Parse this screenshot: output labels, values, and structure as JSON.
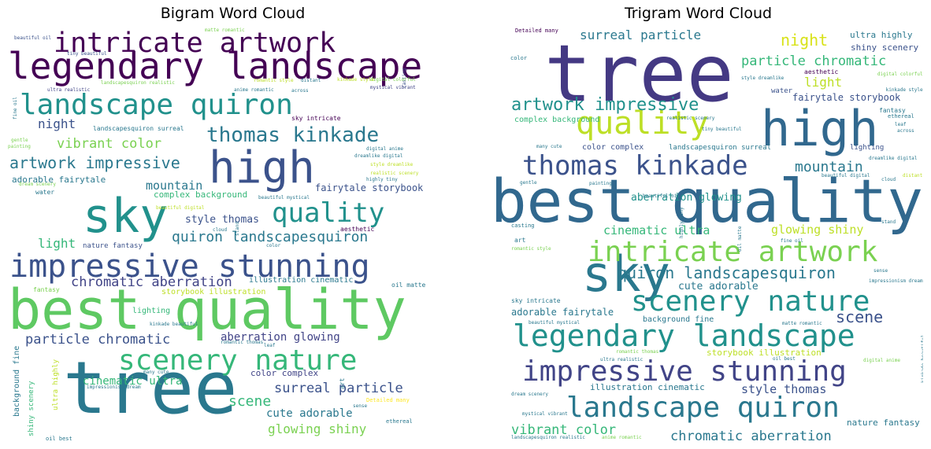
{
  "chart_data": [
    {
      "type": "wordcloud",
      "title": "Bigram Word Cloud",
      "words": [
        {
          "text": "tree",
          "size": 92,
          "color": "#2a788e"
        },
        {
          "text": "best quality",
          "size": 70,
          "color": "#5ec962"
        },
        {
          "text": "legendary landscape",
          "size": 46,
          "color": "#440154"
        },
        {
          "text": "sky",
          "size": 60,
          "color": "#21918c"
        },
        {
          "text": "high",
          "size": 56,
          "color": "#3b528b"
        },
        {
          "text": "impressive stunning",
          "size": 40,
          "color": "#3b528b"
        },
        {
          "text": "landscape quiron",
          "size": 36,
          "color": "#21918c"
        },
        {
          "text": "intricate artwork",
          "size": 35,
          "color": "#440154"
        },
        {
          "text": "scenery nature",
          "size": 36,
          "color": "#35b779"
        },
        {
          "text": "quality",
          "size": 34,
          "color": "#21918c"
        },
        {
          "text": "thomas kinkade",
          "size": 26,
          "color": "#2a788e"
        },
        {
          "text": "artwork impressive",
          "size": 20,
          "color": "#2a788e"
        },
        {
          "text": "quiron landscapesquiron",
          "size": 18,
          "color": "#2a788e"
        },
        {
          "text": "chromatic aberration",
          "size": 17,
          "color": "#414487"
        },
        {
          "text": "particle chromatic",
          "size": 17,
          "color": "#3b528b"
        },
        {
          "text": "vibrant color",
          "size": 17,
          "color": "#7ad151"
        },
        {
          "text": "surreal particle",
          "size": 17,
          "color": "#3b528b"
        },
        {
          "text": "night",
          "size": 16,
          "color": "#3b528b"
        },
        {
          "text": "mountain",
          "size": 15,
          "color": "#2a788e"
        },
        {
          "text": "light",
          "size": 16,
          "color": "#35b779"
        },
        {
          "text": "scene",
          "size": 18,
          "color": "#35b779"
        },
        {
          "text": "glowing shiny",
          "size": 16,
          "color": "#7ad151"
        },
        {
          "text": "cute adorable",
          "size": 14,
          "color": "#2a788e"
        },
        {
          "text": "aberration glowing",
          "size": 14,
          "color": "#414487"
        },
        {
          "text": "cinematic ultra",
          "size": 14,
          "color": "#35b779"
        },
        {
          "text": "style thomas",
          "size": 13,
          "color": "#3b528b"
        },
        {
          "text": "fairytale storybook",
          "size": 12,
          "color": "#3b528b"
        },
        {
          "text": "complex background",
          "size": 11,
          "color": "#35b779"
        },
        {
          "text": "adorable fairytale",
          "size": 11,
          "color": "#2a788e"
        },
        {
          "text": "color complex",
          "size": 11,
          "color": "#414487"
        },
        {
          "text": "illustration cinematic",
          "size": 10,
          "color": "#2a788e"
        },
        {
          "text": "storybook illustration",
          "size": 10,
          "color": "#bddf26"
        },
        {
          "text": "lighting",
          "size": 10,
          "color": "#35b779"
        },
        {
          "text": "background fine",
          "size": 10,
          "color": "#2a788e"
        },
        {
          "text": "nature fantasy",
          "size": 9,
          "color": "#3b528b"
        },
        {
          "text": "ultra highly",
          "size": 9,
          "color": "#bddf26"
        },
        {
          "text": "shiny scenery",
          "size": 9,
          "color": "#35b779"
        },
        {
          "text": "landscapesquiron surreal",
          "size": 8,
          "color": "#2a788e"
        },
        {
          "text": "sky intricate",
          "size": 8,
          "color": "#440154"
        },
        {
          "text": "water",
          "size": 8,
          "color": "#2a788e"
        },
        {
          "text": "fantasy",
          "size": 8,
          "color": "#7ad151"
        },
        {
          "text": "aesthetic",
          "size": 8,
          "color": "#440154"
        },
        {
          "text": "oil matte",
          "size": 8,
          "color": "#2a788e"
        },
        {
          "text": "art",
          "size": 8,
          "color": "#2a788e"
        },
        {
          "text": "Detailed many",
          "size": 7,
          "color": "#fde725"
        },
        {
          "text": "ethereal",
          "size": 7,
          "color": "#2a788e"
        },
        {
          "text": "oil best",
          "size": 7,
          "color": "#2a788e"
        },
        {
          "text": "mystical vibrant",
          "size": 6,
          "color": "#414487"
        },
        {
          "text": "casting",
          "size": 6,
          "color": "#3b528b"
        },
        {
          "text": "digital colorful",
          "size": 6,
          "color": "#7ad151"
        },
        {
          "text": "kinkade style",
          "size": 6,
          "color": "#bddf26"
        },
        {
          "text": "romantic style",
          "size": 6,
          "color": "#bddf26"
        },
        {
          "text": "distant",
          "size": 6,
          "color": "#2a788e"
        },
        {
          "text": "anime romantic",
          "size": 6,
          "color": "#2a788e"
        },
        {
          "text": "across",
          "size": 6,
          "color": "#2a788e"
        },
        {
          "text": "ultra realistic",
          "size": 6,
          "color": "#414487"
        },
        {
          "text": "landscapesquiron realistic",
          "size": 6,
          "color": "#7ad151"
        },
        {
          "text": "fine oil",
          "size": 6,
          "color": "#2a788e"
        },
        {
          "text": "gentle",
          "size": 6,
          "color": "#7ad151"
        },
        {
          "text": "painting",
          "size": 6,
          "color": "#7ad151"
        },
        {
          "text": "digital anime",
          "size": 6,
          "color": "#2a788e"
        },
        {
          "text": "style dreamlike",
          "size": 6,
          "color": "#bddf26"
        },
        {
          "text": "dreamlike digital",
          "size": 6,
          "color": "#2a788e"
        },
        {
          "text": "realistic scenery",
          "size": 6,
          "color": "#bddf26"
        },
        {
          "text": "highly tiny",
          "size": 6,
          "color": "#2a788e"
        },
        {
          "text": "dream scenery",
          "size": 6,
          "color": "#7ad151"
        },
        {
          "text": "beautiful mystical",
          "size": 6,
          "color": "#2a788e"
        },
        {
          "text": "beautiful digital",
          "size": 6,
          "color": "#bddf26"
        },
        {
          "text": "cloud",
          "size": 6,
          "color": "#2a788e"
        },
        {
          "text": "stand",
          "size": 6,
          "color": "#2a788e"
        },
        {
          "text": "color",
          "size": 6,
          "color": "#2a788e"
        },
        {
          "text": "kinkade beautiful",
          "size": 6,
          "color": "#2a788e"
        },
        {
          "text": "romantic thomas",
          "size": 6,
          "color": "#2a788e"
        },
        {
          "text": "leaf",
          "size": 6,
          "color": "#2a788e"
        },
        {
          "text": "many cute",
          "size": 6,
          "color": "#2a788e"
        },
        {
          "text": "impressionism dream",
          "size": 6,
          "color": "#2a788e"
        },
        {
          "text": "sense",
          "size": 6,
          "color": "#2a788e"
        },
        {
          "text": "beautiful oil",
          "size": 6,
          "color": "#3b528b"
        },
        {
          "text": "tiny beautiful",
          "size": 6,
          "color": "#3b528b"
        },
        {
          "text": "matte romantic",
          "size": 6,
          "color": "#7ad151"
        }
      ]
    },
    {
      "type": "wordcloud",
      "title": "Trigram Word Cloud",
      "words": [
        {
          "text": "tree",
          "size": 100,
          "color": "#443983"
        },
        {
          "text": "best quality",
          "size": 76,
          "color": "#31688e"
        },
        {
          "text": "high",
          "size": 62,
          "color": "#31688e"
        },
        {
          "text": "sky",
          "size": 62,
          "color": "#2a788e"
        },
        {
          "text": "quality",
          "size": 40,
          "color": "#bddf26"
        },
        {
          "text": "legendary landscape",
          "size": 38,
          "color": "#21918c"
        },
        {
          "text": "impressive stunning",
          "size": 36,
          "color": "#414487"
        },
        {
          "text": "landscape quiron",
          "size": 36,
          "color": "#2a788e"
        },
        {
          "text": "intricate artwork",
          "size": 36,
          "color": "#7ad151"
        },
        {
          "text": "scenery nature",
          "size": 36,
          "color": "#21918c"
        },
        {
          "text": "thomas kinkade",
          "size": 34,
          "color": "#3b528b"
        },
        {
          "text": "artwork impressive",
          "size": 22,
          "color": "#21918c"
        },
        {
          "text": "quiron landscapesquiron",
          "size": 20,
          "color": "#2a788e"
        },
        {
          "text": "scene",
          "size": 20,
          "color": "#3b528b"
        },
        {
          "text": "mountain",
          "size": 18,
          "color": "#2a788e"
        },
        {
          "text": "particle chromatic",
          "size": 17,
          "color": "#35b779"
        },
        {
          "text": "chromatic aberration",
          "size": 17,
          "color": "#2a788e"
        },
        {
          "text": "vibrant color",
          "size": 17,
          "color": "#35b779"
        },
        {
          "text": "night",
          "size": 20,
          "color": "#d8e219"
        },
        {
          "text": "surreal particle",
          "size": 16,
          "color": "#2a788e"
        },
        {
          "text": "light",
          "size": 16,
          "color": "#bddf26"
        },
        {
          "text": "style thomas",
          "size": 15,
          "color": "#3b528b"
        },
        {
          "text": "glowing shiny",
          "size": 15,
          "color": "#bddf26"
        },
        {
          "text": "cinematic ultra",
          "size": 15,
          "color": "#35b779"
        },
        {
          "text": "aberration glowing",
          "size": 13,
          "color": "#21918c"
        },
        {
          "text": "cute adorable",
          "size": 13,
          "color": "#2a788e"
        },
        {
          "text": "fairytale storybook",
          "size": 12,
          "color": "#3b528b"
        },
        {
          "text": "adorable fairytale",
          "size": 12,
          "color": "#2a788e"
        },
        {
          "text": "ultra highly",
          "size": 11,
          "color": "#2a788e"
        },
        {
          "text": "shiny scenery",
          "size": 11,
          "color": "#3b528b"
        },
        {
          "text": "illustration cinematic",
          "size": 11,
          "color": "#2a788e"
        },
        {
          "text": "nature fantasy",
          "size": 11,
          "color": "#2a788e"
        },
        {
          "text": "storybook illustration",
          "size": 11,
          "color": "#bddf26"
        },
        {
          "text": "background fine",
          "size": 10,
          "color": "#2a788e"
        },
        {
          "text": "complex background",
          "size": 10,
          "color": "#35b779"
        },
        {
          "text": "color complex",
          "size": 10,
          "color": "#3b528b"
        },
        {
          "text": "landscapesquiron surreal",
          "size": 9,
          "color": "#2a788e"
        },
        {
          "text": "lighting",
          "size": 9,
          "color": "#3b528b"
        },
        {
          "text": "water",
          "size": 9,
          "color": "#3b528b"
        },
        {
          "text": "aesthetic",
          "size": 8,
          "color": "#440154"
        },
        {
          "text": "sky intricate",
          "size": 8,
          "color": "#2a788e"
        },
        {
          "text": "fantasy",
          "size": 8,
          "color": "#2a788e"
        },
        {
          "text": "art",
          "size": 8,
          "color": "#2a788e"
        },
        {
          "text": "casting",
          "size": 7,
          "color": "#2a788e"
        },
        {
          "text": "Detailed many",
          "size": 7,
          "color": "#440154"
        },
        {
          "text": "color",
          "size": 7,
          "color": "#2a788e"
        },
        {
          "text": "ethereal",
          "size": 7,
          "color": "#2a788e"
        },
        {
          "text": "kinkade style",
          "size": 6,
          "color": "#2a788e"
        },
        {
          "text": "digital colorful",
          "size": 6,
          "color": "#7ad151"
        },
        {
          "text": "style dreamlike",
          "size": 6,
          "color": "#2a788e"
        },
        {
          "text": "realistic scenery",
          "size": 6,
          "color": "#2a788e"
        },
        {
          "text": "tiny beautiful",
          "size": 6,
          "color": "#2a788e"
        },
        {
          "text": "many cute",
          "size": 6,
          "color": "#2a788e"
        },
        {
          "text": "dreamlike digital",
          "size": 6,
          "color": "#2a788e"
        },
        {
          "text": "beautiful digital",
          "size": 6,
          "color": "#2a788e"
        },
        {
          "text": "across",
          "size": 6,
          "color": "#2a788e"
        },
        {
          "text": "leaf",
          "size": 6,
          "color": "#2a788e"
        },
        {
          "text": "cloud",
          "size": 6,
          "color": "#2a788e"
        },
        {
          "text": "distant",
          "size": 6,
          "color": "#bddf26"
        },
        {
          "text": "gentle",
          "size": 6,
          "color": "#2a788e"
        },
        {
          "text": "painting",
          "size": 6,
          "color": "#2a788e"
        },
        {
          "text": "beautiful oil",
          "size": 6,
          "color": "#2a788e"
        },
        {
          "text": "stand",
          "size": 6,
          "color": "#2a788e"
        },
        {
          "text": "highly tiny",
          "size": 6,
          "color": "#2a788e"
        },
        {
          "text": "oil matte",
          "size": 6,
          "color": "#2a788e"
        },
        {
          "text": "fine oil",
          "size": 6,
          "color": "#2a788e"
        },
        {
          "text": "romantic style",
          "size": 6,
          "color": "#7ad151"
        },
        {
          "text": "impressionism dream",
          "size": 6,
          "color": "#2a788e"
        },
        {
          "text": "sense",
          "size": 6,
          "color": "#2a788e"
        },
        {
          "text": "beautiful mystical",
          "size": 6,
          "color": "#2a788e"
        },
        {
          "text": "matte romantic",
          "size": 6,
          "color": "#2a788e"
        },
        {
          "text": "romantic thomas",
          "size": 6,
          "color": "#7ad151"
        },
        {
          "text": "ultra realistic",
          "size": 6,
          "color": "#2a788e"
        },
        {
          "text": "oil best",
          "size": 6,
          "color": "#2a788e"
        },
        {
          "text": "digital anime",
          "size": 6,
          "color": "#7ad151"
        },
        {
          "text": "kinkade beautiful",
          "size": 6,
          "color": "#2a788e"
        },
        {
          "text": "dream scenery",
          "size": 6,
          "color": "#2a788e"
        },
        {
          "text": "mystical vibrant",
          "size": 6,
          "color": "#2a788e"
        },
        {
          "text": "landscapesquiron realistic",
          "size": 6,
          "color": "#2a788e"
        },
        {
          "text": "anime romantic",
          "size": 6,
          "color": "#7ad151"
        }
      ]
    }
  ]
}
